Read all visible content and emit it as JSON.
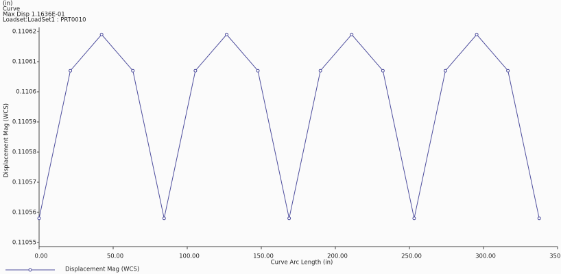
{
  "chart_data": {
    "type": "line",
    "header": [
      "(in)",
      "Curve",
      "Max Disp   1.1636E-01",
      "Loadset:LoadSet1 : PRT0010"
    ],
    "x_label": "Curve Arc Length (in)",
    "y_label": "Displacement Mag (WCS)",
    "x": [
      0,
      21.1,
      42.2,
      63.3,
      84.4,
      105.5,
      126.6,
      147.7,
      168.8,
      189.9,
      211,
      232.1,
      253.2,
      274.3,
      295.4,
      316.5,
      337.6
    ],
    "series": [
      {
        "name": "Displacement Mag (WCS)",
        "color": "#4c4c9c",
        "values": [
          0.110558,
          0.110607,
          0.110619,
          0.110607,
          0.110558,
          0.110607,
          0.110619,
          0.110607,
          0.110558,
          0.110607,
          0.110619,
          0.110607,
          0.110558,
          0.110607,
          0.110619,
          0.110607,
          0.110558
        ]
      }
    ],
    "xlim": [
      0,
      350
    ],
    "xticks": [
      {
        "value": 0,
        "label": "0.00"
      },
      {
        "value": 50,
        "label": "50.00"
      },
      {
        "value": 100,
        "label": "100.00"
      },
      {
        "value": 150,
        "label": "150.00"
      },
      {
        "value": 200,
        "label": "200.00"
      },
      {
        "value": 250,
        "label": "250.00"
      },
      {
        "value": 300,
        "label": "300.00"
      },
      {
        "value": 350,
        "label": "350.00"
      }
    ],
    "ylim": [
      0.11055,
      0.11062
    ],
    "yticks": [
      0.11055,
      0.11056,
      0.11057,
      0.11058,
      0.11059,
      0.1106,
      0.11061,
      0.11062
    ],
    "grid": false
  }
}
